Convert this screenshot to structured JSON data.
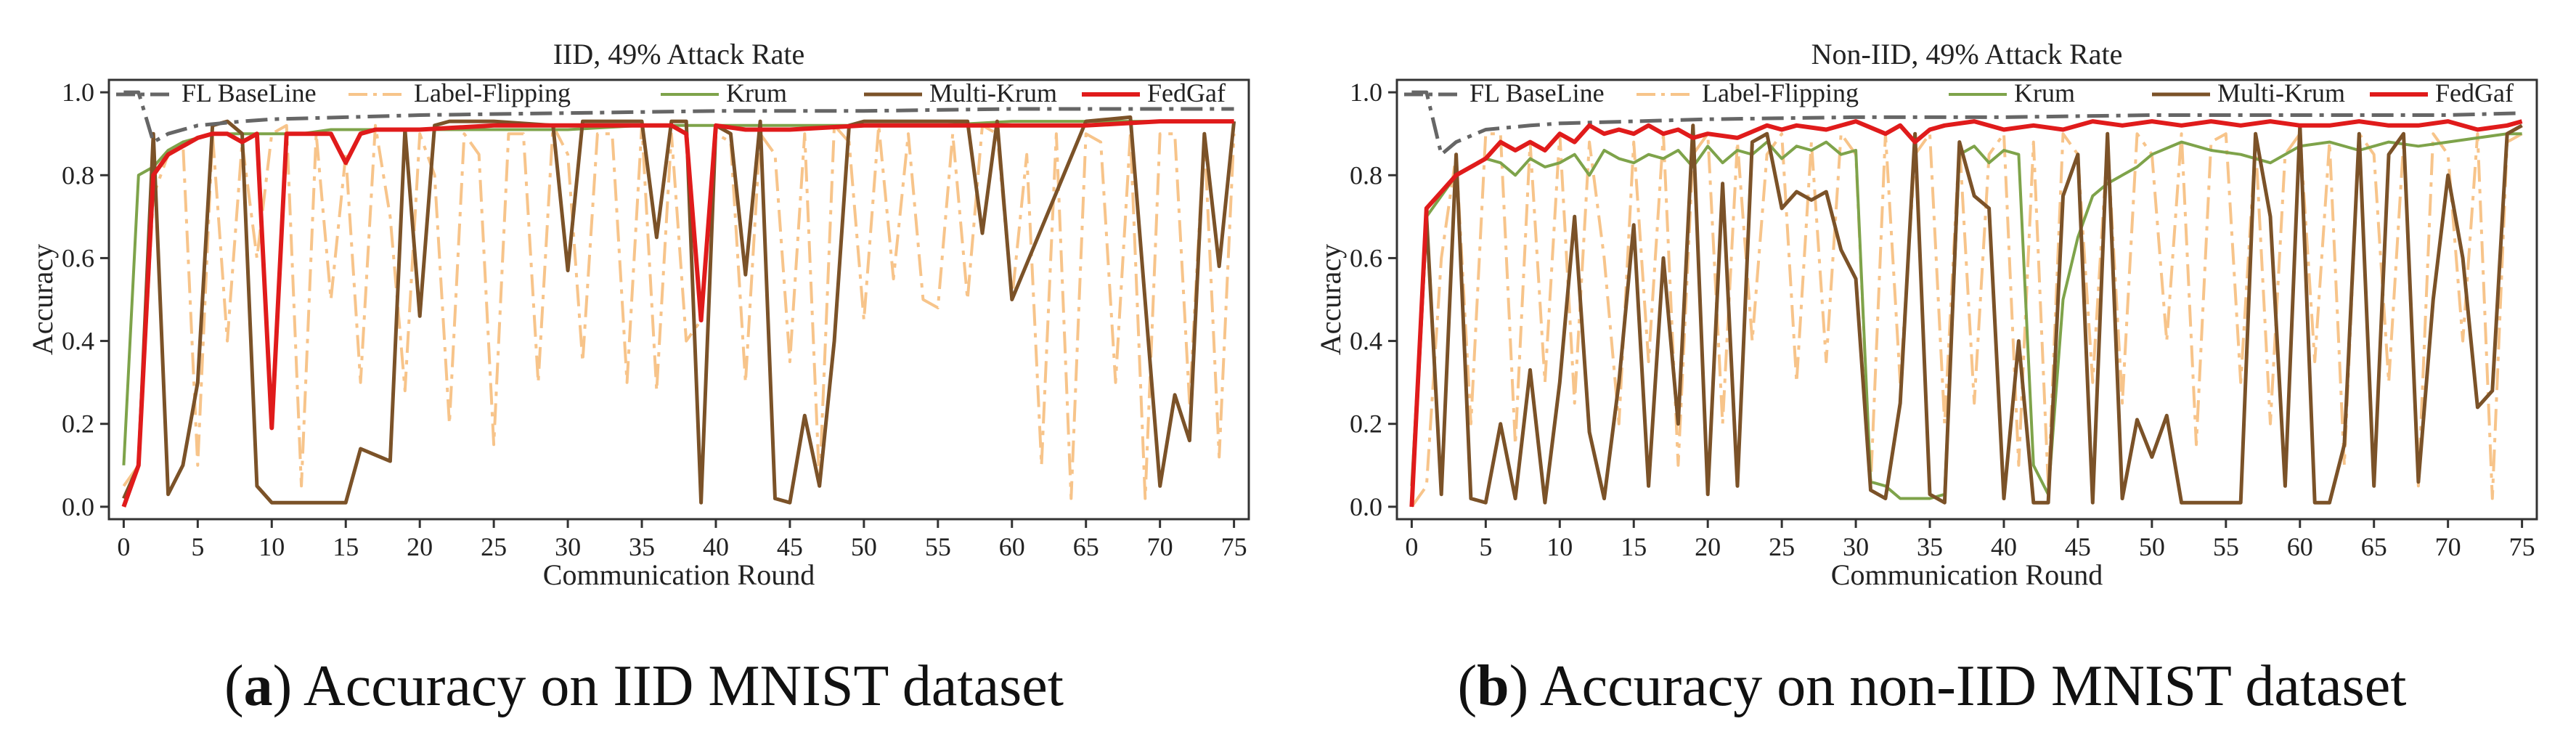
{
  "figure": {
    "captions": [
      {
        "prefix": "(",
        "letter": "a",
        "text": ") Accuracy on IID MNIST dataset"
      },
      {
        "prefix": "(",
        "letter": "b",
        "text": ") Accuracy on non-IID MNIST dataset"
      }
    ]
  },
  "styles": {
    "FL BaseLine": {
      "color": "#666666",
      "dash": "dashdot",
      "width": 5
    },
    "Label-Flipping": {
      "color": "#f7c48a",
      "dash": "dashdot",
      "width": 4
    },
    "Krum": {
      "color": "#7ea34a",
      "dash": "solid",
      "width": 4
    },
    "Multi-Krum": {
      "color": "#7b5228",
      "dash": "solid",
      "width": 5
    },
    "FedGaf": {
      "color": "#e01b1b",
      "dash": "solid",
      "width": 6
    }
  },
  "chart_data": [
    {
      "type": "line",
      "title": "IID, 49% Attack Rate",
      "xlabel": "Communication Round",
      "ylabel": "Accuracy",
      "xlim": [
        -1,
        76
      ],
      "ylim": [
        -0.03,
        1.03
      ],
      "xticks": [
        0,
        5,
        10,
        15,
        20,
        25,
        30,
        35,
        40,
        45,
        50,
        55,
        60,
        65,
        70,
        75
      ],
      "yticks": [
        0.0,
        0.2,
        0.4,
        0.6,
        0.8,
        1.0
      ],
      "ytick_labels": [
        "0.0",
        "0.2",
        "0.4",
        "0.6",
        "0.8",
        "1.0"
      ],
      "legend": [
        "FL BaseLine",
        "Label-Flipping",
        "Krum",
        "Multi-Krum",
        "FedGaf"
      ],
      "series": [
        {
          "name": "FL BaseLine",
          "x": [
            0,
            1,
            2,
            3,
            5,
            8,
            10,
            15,
            20,
            30,
            40,
            50,
            60,
            70,
            75
          ],
          "y": [
            1.0,
            1.0,
            0.88,
            0.9,
            0.92,
            0.93,
            0.935,
            0.94,
            0.945,
            0.95,
            0.955,
            0.955,
            0.96,
            0.96,
            0.96
          ]
        },
        {
          "name": "Label-Flipping",
          "x": [
            0,
            1,
            2,
            3,
            4,
            5,
            6,
            7,
            8,
            9,
            10,
            11,
            12,
            13,
            14,
            15,
            16,
            17,
            18,
            19,
            20,
            21,
            22,
            23,
            24,
            25,
            26,
            27,
            28,
            29,
            30,
            31,
            32,
            33,
            34,
            35,
            36,
            37,
            38,
            39,
            40,
            41,
            42,
            43,
            44,
            45,
            46,
            47,
            48,
            49,
            50,
            51,
            52,
            53,
            54,
            55,
            56,
            57,
            58,
            59,
            60,
            61,
            62,
            63,
            64,
            65,
            66,
            67,
            68,
            69,
            70,
            71,
            72,
            73,
            74,
            75
          ],
          "y": [
            0.05,
            0.1,
            0.75,
            0.85,
            0.88,
            0.1,
            0.9,
            0.4,
            0.88,
            0.6,
            0.9,
            0.92,
            0.05,
            0.9,
            0.5,
            0.85,
            0.3,
            0.92,
            0.7,
            0.28,
            0.9,
            0.8,
            0.2,
            0.9,
            0.85,
            0.15,
            0.9,
            0.9,
            0.3,
            0.92,
            0.85,
            0.35,
            0.9,
            0.9,
            0.3,
            0.92,
            0.28,
            0.9,
            0.4,
            0.45,
            0.9,
            0.88,
            0.3,
            0.9,
            0.85,
            0.35,
            0.9,
            0.05,
            0.92,
            0.88,
            0.45,
            0.92,
            0.55,
            0.9,
            0.5,
            0.48,
            0.9,
            0.5,
            0.92,
            0.9,
            0.5,
            0.85,
            0.1,
            0.9,
            0.02,
            0.9,
            0.88,
            0.3,
            0.9,
            0.02,
            0.9,
            0.9,
            0.25,
            0.9,
            0.12,
            0.9
          ]
        },
        {
          "name": "Krum",
          "x": [
            0,
            1,
            2,
            3,
            4,
            5,
            6,
            7,
            8,
            9,
            10,
            12,
            14,
            15,
            16,
            18,
            20,
            25,
            30,
            35,
            40,
            45,
            50,
            55,
            60,
            65,
            70,
            75
          ],
          "y": [
            0.1,
            0.8,
            0.82,
            0.86,
            0.88,
            0.89,
            0.9,
            0.9,
            0.9,
            0.9,
            0.9,
            0.9,
            0.91,
            0.91,
            0.91,
            0.91,
            0.91,
            0.91,
            0.91,
            0.92,
            0.92,
            0.92,
            0.92,
            0.92,
            0.93,
            0.93,
            0.93,
            0.93
          ]
        },
        {
          "name": "Multi-Krum",
          "x": [
            0,
            1,
            2,
            3,
            4,
            5,
            6,
            7,
            8,
            9,
            10,
            12,
            15,
            16,
            18,
            19,
            20,
            21,
            22,
            25,
            29,
            30,
            31,
            35,
            36,
            37,
            38,
            39,
            40,
            41,
            42,
            43,
            44,
            45,
            46,
            47,
            48,
            49,
            50,
            55,
            57,
            58,
            59,
            60,
            65,
            68,
            70,
            71,
            72,
            73,
            74,
            75
          ],
          "y": [
            0.02,
            0.1,
            0.9,
            0.03,
            0.1,
            0.3,
            0.92,
            0.93,
            0.9,
            0.05,
            0.01,
            0.01,
            0.01,
            0.14,
            0.11,
            0.91,
            0.46,
            0.92,
            0.93,
            0.93,
            0.92,
            0.57,
            0.93,
            0.93,
            0.65,
            0.93,
            0.93,
            0.01,
            0.92,
            0.9,
            0.56,
            0.93,
            0.02,
            0.01,
            0.22,
            0.05,
            0.4,
            0.92,
            0.93,
            0.93,
            0.93,
            0.66,
            0.93,
            0.5,
            0.93,
            0.94,
            0.05,
            0.27,
            0.16,
            0.9,
            0.58,
            0.93
          ]
        },
        {
          "name": "FedGaf",
          "x": [
            0,
            1,
            2,
            3,
            4,
            5,
            6,
            7,
            8,
            9,
            10,
            11,
            12,
            14,
            15,
            16,
            17,
            18,
            20,
            25,
            30,
            35,
            37,
            38,
            39,
            40,
            42,
            45,
            50,
            55,
            60,
            65,
            70,
            75
          ],
          "y": [
            0.0,
            0.1,
            0.8,
            0.85,
            0.87,
            0.89,
            0.9,
            0.9,
            0.88,
            0.9,
            0.19,
            0.9,
            0.9,
            0.9,
            0.83,
            0.9,
            0.91,
            0.91,
            0.91,
            0.92,
            0.92,
            0.92,
            0.92,
            0.9,
            0.45,
            0.92,
            0.91,
            0.91,
            0.92,
            0.92,
            0.92,
            0.92,
            0.93,
            0.93
          ]
        }
      ]
    },
    {
      "type": "line",
      "title": "Non-IID, 49% Attack Rate",
      "xlabel": "Communication Round",
      "ylabel": "Accuracy",
      "xlim": [
        -1,
        76
      ],
      "ylim": [
        -0.03,
        1.03
      ],
      "xticks": [
        0,
        5,
        10,
        15,
        20,
        25,
        30,
        35,
        40,
        45,
        50,
        55,
        60,
        65,
        70,
        75
      ],
      "yticks": [
        0.0,
        0.2,
        0.4,
        0.6,
        0.8,
        1.0
      ],
      "ytick_labels": [
        "0.0",
        "0.2",
        "0.4",
        "0.6",
        "0.8",
        "1.0"
      ],
      "legend": [
        "FL BaseLine",
        "Label-Flipping",
        "Krum",
        "Multi-Krum",
        "FedGaf"
      ],
      "series": [
        {
          "name": "FL BaseLine",
          "x": [
            0,
            1,
            2,
            3,
            5,
            8,
            10,
            15,
            20,
            30,
            40,
            50,
            60,
            70,
            75
          ],
          "y": [
            1.0,
            1.0,
            0.85,
            0.88,
            0.91,
            0.92,
            0.925,
            0.93,
            0.935,
            0.94,
            0.94,
            0.945,
            0.945,
            0.945,
            0.95
          ]
        },
        {
          "name": "Label-Flipping",
          "x": [
            0,
            1,
            2,
            3,
            4,
            5,
            6,
            7,
            8,
            9,
            10,
            11,
            12,
            13,
            14,
            15,
            16,
            17,
            18,
            19,
            20,
            21,
            22,
            23,
            24,
            25,
            26,
            27,
            28,
            29,
            30,
            31,
            32,
            33,
            34,
            35,
            36,
            37,
            38,
            39,
            40,
            41,
            42,
            43,
            44,
            45,
            46,
            47,
            48,
            49,
            50,
            51,
            52,
            53,
            54,
            55,
            56,
            57,
            58,
            59,
            60,
            61,
            62,
            63,
            64,
            65,
            66,
            67,
            68,
            69,
            70,
            71,
            72,
            73,
            74,
            75
          ],
          "y": [
            0.0,
            0.05,
            0.6,
            0.85,
            0.2,
            0.9,
            0.9,
            0.15,
            0.88,
            0.3,
            0.9,
            0.25,
            0.88,
            0.6,
            0.2,
            0.88,
            0.35,
            0.9,
            0.1,
            0.85,
            0.9,
            0.2,
            0.88,
            0.4,
            0.85,
            0.9,
            0.3,
            0.88,
            0.35,
            0.9,
            0.85,
            0.05,
            0.9,
            0.3,
            0.85,
            0.9,
            0.2,
            0.88,
            0.25,
            0.85,
            0.9,
            0.1,
            0.88,
            0.05,
            0.9,
            0.85,
            0.3,
            0.88,
            0.25,
            0.9,
            0.85,
            0.4,
            0.9,
            0.15,
            0.88,
            0.9,
            0.3,
            0.88,
            0.2,
            0.85,
            0.9,
            0.35,
            0.88,
            0.1,
            0.9,
            0.85,
            0.3,
            0.88,
            0.05,
            0.9,
            0.85,
            0.4,
            0.9,
            0.02,
            0.88,
            0.9
          ]
        },
        {
          "name": "Krum",
          "x": [
            0,
            1,
            2,
            3,
            4,
            5,
            6,
            7,
            8,
            9,
            10,
            11,
            12,
            13,
            14,
            15,
            16,
            17,
            18,
            19,
            20,
            21,
            22,
            23,
            24,
            25,
            26,
            27,
            28,
            29,
            30,
            31,
            32,
            33,
            34,
            35,
            36,
            37,
            38,
            39,
            40,
            41,
            42,
            43,
            44,
            45,
            46,
            47,
            48,
            49,
            50,
            52,
            54,
            56,
            58,
            60,
            62,
            64,
            66,
            68,
            70,
            72,
            74,
            75
          ],
          "y": [
            0.05,
            0.7,
            0.75,
            0.8,
            0.82,
            0.84,
            0.83,
            0.8,
            0.84,
            0.82,
            0.83,
            0.85,
            0.8,
            0.86,
            0.84,
            0.83,
            0.85,
            0.84,
            0.86,
            0.82,
            0.87,
            0.83,
            0.86,
            0.85,
            0.88,
            0.84,
            0.87,
            0.86,
            0.88,
            0.85,
            0.86,
            0.06,
            0.05,
            0.02,
            0.02,
            0.02,
            0.03,
            0.85,
            0.87,
            0.83,
            0.86,
            0.85,
            0.1,
            0.03,
            0.5,
            0.65,
            0.75,
            0.78,
            0.8,
            0.82,
            0.85,
            0.88,
            0.86,
            0.85,
            0.83,
            0.87,
            0.88,
            0.86,
            0.88,
            0.87,
            0.88,
            0.89,
            0.9,
            0.9
          ]
        },
        {
          "name": "Multi-Krum",
          "x": [
            0,
            1,
            2,
            3,
            4,
            5,
            6,
            7,
            8,
            9,
            10,
            11,
            12,
            13,
            14,
            15,
            16,
            17,
            18,
            19,
            20,
            21,
            22,
            23,
            24,
            25,
            26,
            27,
            28,
            29,
            30,
            31,
            32,
            33,
            34,
            35,
            36,
            37,
            38,
            39,
            40,
            41,
            42,
            43,
            44,
            45,
            46,
            47,
            48,
            49,
            50,
            51,
            52,
            53,
            54,
            55,
            56,
            57,
            58,
            59,
            60,
            61,
            62,
            63,
            64,
            65,
            66,
            67,
            68,
            69,
            70,
            71,
            72,
            73,
            74,
            75
          ],
          "y": [
            0.0,
            0.7,
            0.03,
            0.85,
            0.02,
            0.01,
            0.2,
            0.02,
            0.33,
            0.01,
            0.3,
            0.7,
            0.18,
            0.02,
            0.3,
            0.68,
            0.05,
            0.6,
            0.2,
            0.92,
            0.03,
            0.78,
            0.05,
            0.88,
            0.9,
            0.72,
            0.76,
            0.74,
            0.76,
            0.62,
            0.55,
            0.04,
            0.02,
            0.25,
            0.9,
            0.03,
            0.01,
            0.88,
            0.75,
            0.72,
            0.02,
            0.4,
            0.01,
            0.01,
            0.75,
            0.85,
            0.01,
            0.9,
            0.02,
            0.21,
            0.12,
            0.22,
            0.01,
            0.01,
            0.01,
            0.01,
            0.01,
            0.9,
            0.7,
            0.05,
            0.92,
            0.01,
            0.01,
            0.15,
            0.9,
            0.05,
            0.85,
            0.9,
            0.06,
            0.5,
            0.8,
            0.6,
            0.24,
            0.28,
            0.9,
            0.92
          ]
        },
        {
          "name": "FedGaf",
          "x": [
            0,
            1,
            2,
            3,
            4,
            5,
            6,
            7,
            8,
            9,
            10,
            11,
            12,
            13,
            14,
            15,
            16,
            17,
            18,
            19,
            20,
            22,
            24,
            25,
            26,
            28,
            30,
            32,
            33,
            34,
            35,
            36,
            38,
            40,
            42,
            44,
            46,
            48,
            50,
            52,
            54,
            56,
            58,
            60,
            62,
            64,
            66,
            68,
            70,
            72,
            74,
            75
          ],
          "y": [
            0.0,
            0.72,
            0.76,
            0.8,
            0.82,
            0.84,
            0.88,
            0.86,
            0.88,
            0.86,
            0.9,
            0.88,
            0.92,
            0.9,
            0.91,
            0.9,
            0.92,
            0.9,
            0.91,
            0.89,
            0.9,
            0.89,
            0.92,
            0.91,
            0.92,
            0.91,
            0.93,
            0.9,
            0.92,
            0.88,
            0.91,
            0.92,
            0.93,
            0.91,
            0.92,
            0.91,
            0.93,
            0.92,
            0.93,
            0.92,
            0.93,
            0.92,
            0.93,
            0.92,
            0.92,
            0.93,
            0.92,
            0.92,
            0.93,
            0.91,
            0.92,
            0.93
          ]
        }
      ]
    }
  ]
}
